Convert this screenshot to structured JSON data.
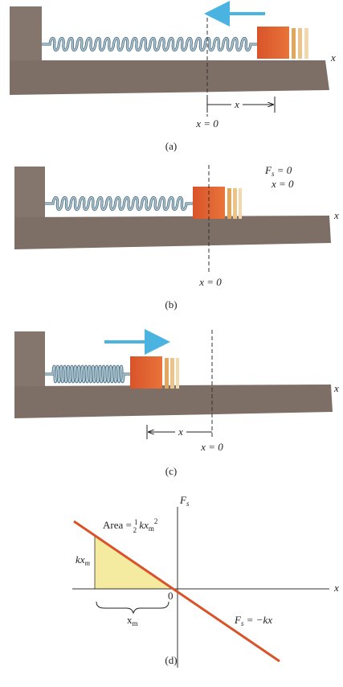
{
  "panel_a": {
    "x_axis": "x",
    "x_bracket": "x",
    "x_zero": "x = 0",
    "caption": "(a)"
  },
  "panel_b": {
    "force": {
      "symbol": "F",
      "subscript": "s",
      "rest": " = 0"
    },
    "x_state": "x = 0",
    "x_axis": "x",
    "x_zero": "x = 0",
    "caption": "(b)"
  },
  "panel_c": {
    "x_axis": "x",
    "x_bracket": "x",
    "x_zero": "x = 0",
    "caption": "(c)"
  },
  "panel_d": {
    "y_axis": {
      "symbol": "F",
      "subscript": "s"
    },
    "x_axis": "x",
    "area": {
      "prefix": "Area = ",
      "numerator": "1",
      "denominator": "2",
      "term": " kx",
      "subscript": "m",
      "superscript": "2"
    },
    "height": {
      "term": "kx",
      "subscript": "m"
    },
    "origin": "0",
    "width": {
      "term": "x",
      "subscript": "m"
    },
    "line_label": {
      "symbol": "F",
      "subscript": "s",
      "rest": " = −kx"
    },
    "caption": "(d)"
  }
}
